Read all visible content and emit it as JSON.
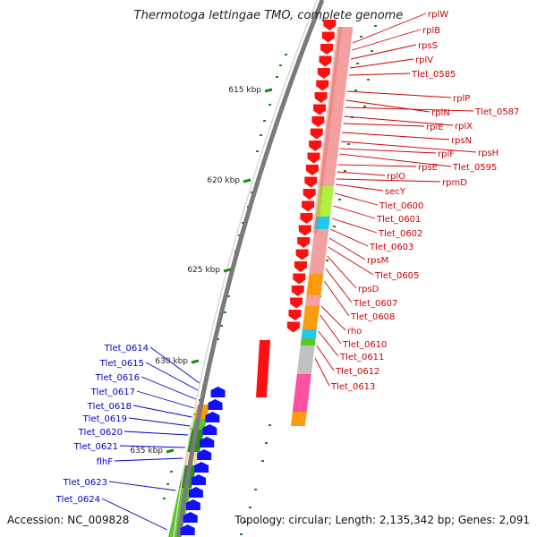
{
  "title": "Thermotoga lettingae TMO, complete genome",
  "accession": "Accession: NC_009828",
  "topology": "Topology: circular; Length: 2,135,342 bp; Genes: 2,091",
  "colors": {
    "red_gene": "#ff1010",
    "pink_block": "#f4a0a0",
    "dark_pink": "#e06060",
    "lime": "#b0f040",
    "cyan": "#20c8f0",
    "orange": "#ff9a10",
    "silver": "#c0c0c0",
    "magenta": "#ff50a0",
    "blue_gene": "#1010ff",
    "green_dark": "#2e8b1e",
    "green_light": "#58c828",
    "khaki": "#eee0a0",
    "right_label": "#cc0000",
    "left_label": "#0000cc",
    "backbone": "#7a7a7a",
    "dots": "#1a8a1a"
  },
  "scale_ticks": [
    "615 kbp",
    "620 kbp",
    "625 kbp",
    "630 kbp",
    "635 kbp"
  ],
  "right_labels": [
    "rplW",
    "rplB",
    "rpsS",
    "rplV",
    "Tlet_0585",
    "rplP",
    "rplN",
    "Tlet_0587",
    "rplX",
    "rplE",
    "rpsN",
    "rpsH",
    "rplF",
    "Tlet_0595",
    "rpsE",
    "rplO",
    "rpmD",
    "secY",
    "Tlet_0600",
    "Tlet_0601",
    "Tlet_0602",
    "Tlet_0603",
    "rpsM",
    "Tlet_0605",
    "rpsD",
    "Tlet_0607",
    "Tlet_0608",
    "rho",
    "Tlet_0610",
    "Tlet_0611",
    "Tlet_0612",
    "Tlet_0613"
  ],
  "left_labels": [
    "Tlet_0614",
    "Tlet_0615",
    "Tlet_0616",
    "Tlet_0617",
    "Tlet_0618",
    "Tlet_0619",
    "Tlet_0620",
    "Tlet_0621",
    "flhF",
    "Tlet_0623",
    "Tlet_0624"
  ]
}
